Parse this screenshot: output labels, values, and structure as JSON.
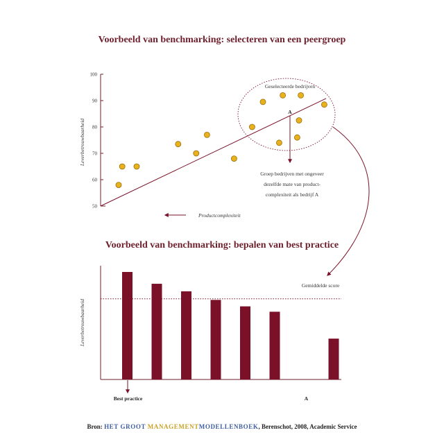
{
  "colors": {
    "primary": "#6e1f2c",
    "bar": "#7a1128",
    "dot": "#e8b21e",
    "dot_edge": "#9a6b0a",
    "accent_yellow": "#c9a227",
    "accent_blue": "#3e5e9e"
  },
  "chart_data": [
    {
      "type": "scatter",
      "title": "Voorbeeld van benchmarking: selecteren van een peergroep",
      "ylabel": "Leverbetrouwbaarheid",
      "xlabel": "Productcomplexiteit",
      "ylim": [
        50,
        100
      ],
      "yticks": [
        "50",
        "60",
        "70",
        "80",
        "90",
        "100"
      ],
      "points": [
        {
          "x": 1.0,
          "y": 58
        },
        {
          "x": 1.2,
          "y": 65
        },
        {
          "x": 2.0,
          "y": 65
        },
        {
          "x": 4.3,
          "y": 73.5
        },
        {
          "x": 5.3,
          "y": 70
        },
        {
          "x": 5.9,
          "y": 77
        },
        {
          "x": 7.4,
          "y": 68
        },
        {
          "x": 8.4,
          "y": 80
        },
        {
          "x": 9.0,
          "y": 89.5
        },
        {
          "x": 9.9,
          "y": 74
        },
        {
          "x": 10.1,
          "y": 92
        },
        {
          "x": 10.9,
          "y": 76
        },
        {
          "x": 11.0,
          "y": 82.5
        },
        {
          "x": 11.1,
          "y": 92
        },
        {
          "x": 12.4,
          "y": 88.5
        }
      ],
      "trendline": {
        "x": [
          0,
          12.5
        ],
        "y": [
          50,
          90.8
        ]
      },
      "annotations": {
        "selected_group": "Geselecteerde bedrijven",
        "point_a": "A",
        "peer_note": [
          "Groep bedrijven met ongeveer",
          "dezelfde mate van product-",
          "complexiteit als bedrijf A"
        ]
      }
    },
    {
      "type": "bar",
      "title": "Voorbeeld van benchmarking: bepalen van best practice",
      "ylabel": "Leverbetrouwbaarheid",
      "categories": [
        "Best practice",
        "",
        "",
        "",
        "",
        "",
        "",
        "A"
      ],
      "values": [
        100,
        89,
        82,
        74,
        68,
        63,
        0,
        38
      ],
      "average": {
        "label": "Gemiddelde score",
        "value": 75
      }
    }
  ],
  "footer": {
    "prefix": "Bron: ",
    "part1": "HET GROOT ",
    "part2": "MANAGEMENT",
    "part3": "MODELLENBOEK",
    "suffix": ", Berenschot, 2008, Academic Service"
  }
}
